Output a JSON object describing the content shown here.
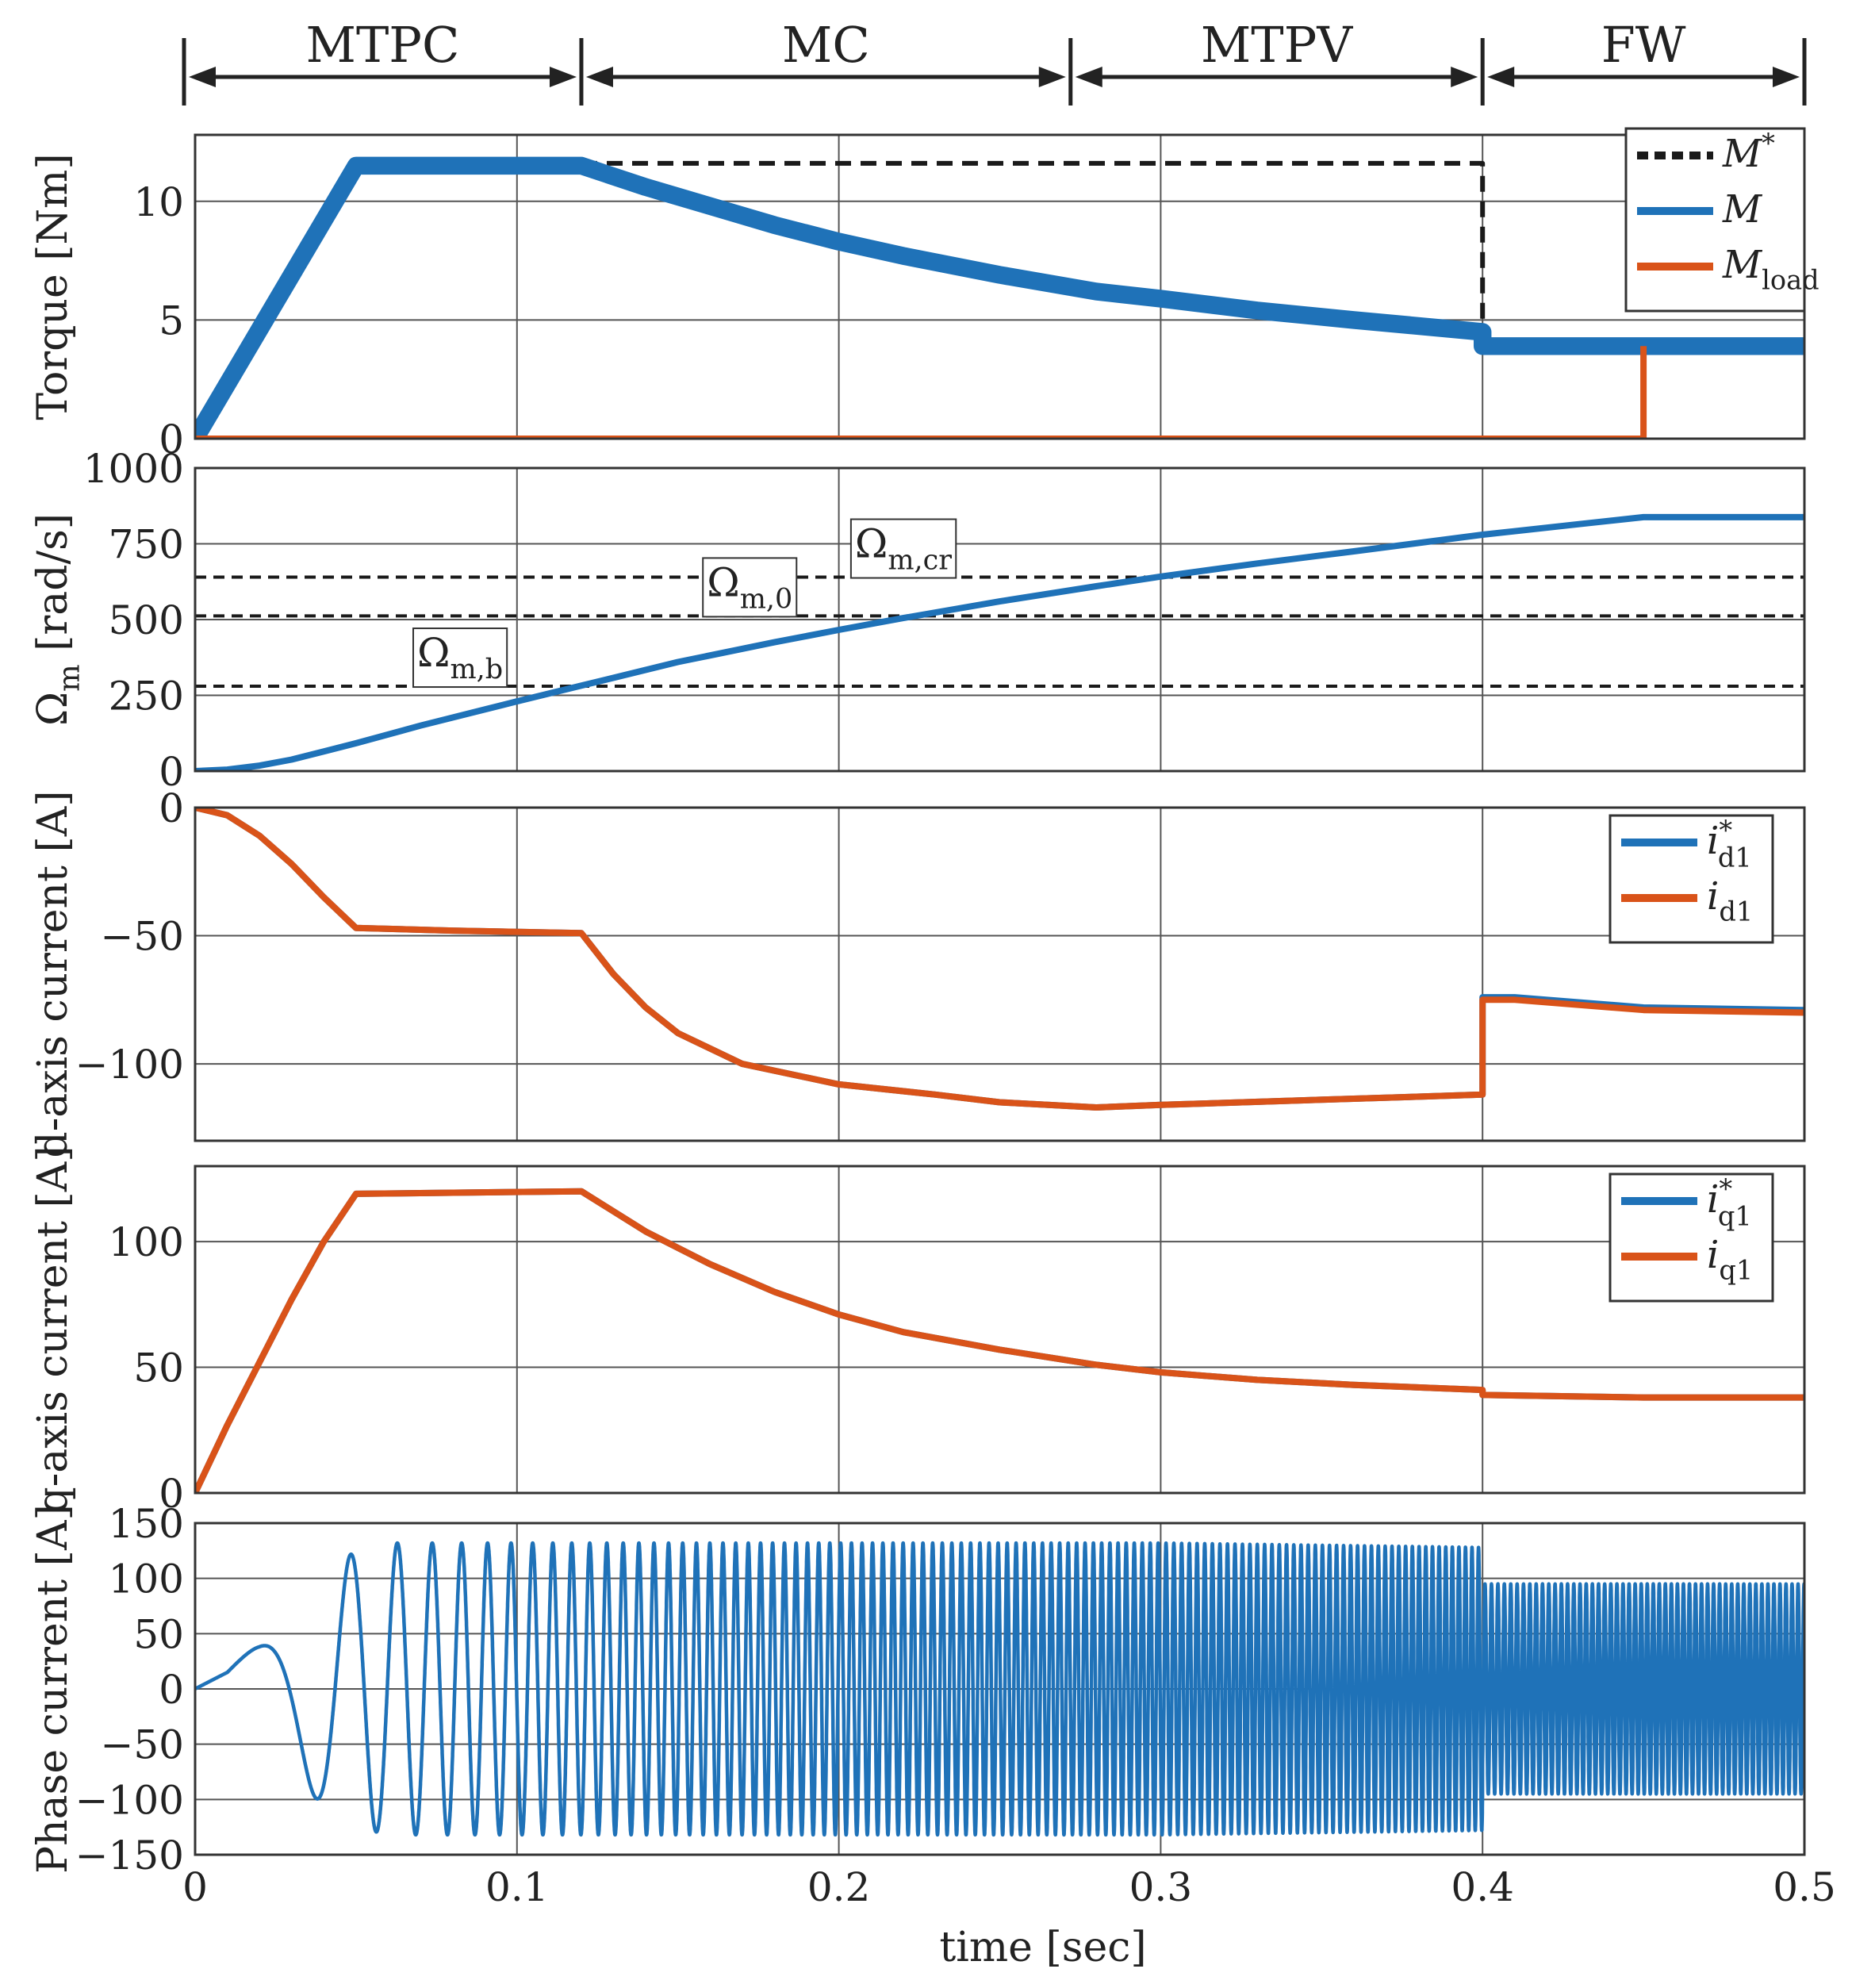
{
  "colors": {
    "blue": "#1f72b8",
    "orange": "#d95319",
    "reference": "#1a1a1a",
    "grid": "#555555",
    "frame": "#333333"
  },
  "regions": {
    "labels": [
      "MTPC",
      "MC",
      "MTPV",
      "FW"
    ],
    "boundaries_sec": [
      0,
      0.12,
      0.272,
      0.4,
      0.5
    ]
  },
  "xaxis": {
    "label": "time [sec]",
    "range": [
      0,
      0.5
    ],
    "ticks": [
      0,
      0.1,
      0.2,
      0.3,
      0.4,
      0.5
    ],
    "tick_labels": [
      "0",
      "0.1",
      "0.2",
      "0.3",
      "0.4",
      "0.5"
    ]
  },
  "chart_data": [
    {
      "type": "line",
      "ylabel": "Torque [Nm]",
      "ylim": [
        0,
        12.8
      ],
      "yticks": [
        0,
        5,
        10
      ],
      "ytick_labels": [
        "0",
        "5",
        "10"
      ],
      "grid": true,
      "legend": {
        "position": "top-right",
        "entries": [
          {
            "symbol": "M",
            "sup": "*",
            "sub": "",
            "series": "M_ref"
          },
          {
            "symbol": "M",
            "sup": "",
            "sub": "",
            "series": "M"
          },
          {
            "symbol": "M",
            "sup": "",
            "sub": "load",
            "series": "M_load"
          }
        ]
      },
      "series": [
        {
          "id": "M_ref",
          "color": "#1a1a1a",
          "style": "dashed",
          "x": [
            0.12,
            0.4,
            0.4
          ],
          "y": [
            11.6,
            11.6,
            4.2
          ]
        },
        {
          "id": "M",
          "color": "#1f72b8",
          "style": "solid",
          "band": 0.75,
          "x": [
            0,
            0.05,
            0.12,
            0.14,
            0.16,
            0.18,
            0.2,
            0.22,
            0.25,
            0.28,
            0.3,
            0.33,
            0.36,
            0.4,
            0.4,
            0.5
          ],
          "y": [
            0,
            11.5,
            11.5,
            10.6,
            9.8,
            9.0,
            8.3,
            7.7,
            6.9,
            6.2,
            5.9,
            5.4,
            5.0,
            4.5,
            3.9,
            3.9
          ]
        },
        {
          "id": "M_load",
          "color": "#d95319",
          "style": "solid",
          "x": [
            0,
            0.45,
            0.45
          ],
          "y": [
            0,
            0,
            3.9
          ]
        }
      ]
    },
    {
      "type": "line",
      "ylabel": "Ω",
      "ylabel_sub": "m",
      "ylabel_suffix": " [rad/s]",
      "ylim": [
        0,
        1000
      ],
      "yticks": [
        0,
        250,
        500,
        750,
        1000
      ],
      "ytick_labels": [
        "0",
        "250",
        "500",
        "750",
        "1000"
      ],
      "grid": true,
      "reference_lines": [
        {
          "value": 280,
          "symbol": "Ω",
          "sub": "m,b",
          "label_x": 0.069
        },
        {
          "value": 512,
          "symbol": "Ω",
          "sub": "m,0",
          "label_x": 0.159
        },
        {
          "value": 640,
          "symbol": "Ω",
          "sub": "m,cr",
          "label_x": 0.205
        }
      ],
      "series": [
        {
          "id": "Omega_m",
          "color": "#1f72b8",
          "style": "solid",
          "x": [
            0,
            0.01,
            0.02,
            0.03,
            0.04,
            0.05,
            0.07,
            0.1,
            0.12,
            0.15,
            0.18,
            0.2,
            0.22,
            0.25,
            0.28,
            0.3,
            0.33,
            0.36,
            0.4,
            0.43,
            0.45,
            0.5
          ],
          "y": [
            0,
            5,
            18,
            38,
            65,
            92,
            150,
            230,
            282,
            360,
            425,
            466,
            505,
            560,
            610,
            642,
            685,
            725,
            780,
            815,
            838,
            838
          ]
        }
      ]
    },
    {
      "type": "line",
      "ylabel": "d-axis current [A]",
      "ylim": [
        -130,
        0
      ],
      "yticks": [
        -100,
        -50,
        0
      ],
      "ytick_labels": [
        "−100",
        "−50",
        "0"
      ],
      "grid": true,
      "legend": {
        "position": "top-right",
        "entries": [
          {
            "symbol": "i",
            "sup": "*",
            "sub": "d1",
            "series": "id_ref"
          },
          {
            "symbol": "i",
            "sup": "",
            "sub": "d1",
            "series": "id"
          }
        ]
      },
      "series": [
        {
          "id": "id_ref",
          "color": "#1f72b8",
          "style": "solid",
          "x": [
            0,
            0.01,
            0.02,
            0.03,
            0.04,
            0.05,
            0.08,
            0.12,
            0.13,
            0.14,
            0.15,
            0.17,
            0.2,
            0.23,
            0.25,
            0.28,
            0.3,
            0.35,
            0.4,
            0.4,
            0.41,
            0.45,
            0.5
          ],
          "y": [
            0,
            -3,
            -11,
            -22,
            -35,
            -47,
            -48,
            -49,
            -65,
            -78,
            -88,
            -100,
            -108,
            -112,
            -115,
            -117,
            -116,
            -114,
            -112,
            -74,
            -74,
            -78,
            -79
          ]
        },
        {
          "id": "id",
          "color": "#d95319",
          "style": "solid",
          "x": [
            0,
            0.01,
            0.02,
            0.03,
            0.04,
            0.05,
            0.08,
            0.12,
            0.13,
            0.14,
            0.15,
            0.17,
            0.2,
            0.23,
            0.25,
            0.28,
            0.3,
            0.35,
            0.4,
            0.4,
            0.41,
            0.45,
            0.5
          ],
          "y": [
            0,
            -3,
            -11,
            -22,
            -35,
            -47,
            -48,
            -49,
            -65,
            -78,
            -88,
            -100,
            -108,
            -112,
            -115,
            -117,
            -116,
            -114,
            -112,
            -75,
            -75,
            -79,
            -80
          ]
        }
      ]
    },
    {
      "type": "line",
      "ylabel": "q-axis current [A]",
      "ylim": [
        0,
        130
      ],
      "yticks": [
        0,
        50,
        100
      ],
      "ytick_labels": [
        "0",
        "50",
        "100"
      ],
      "grid": true,
      "legend": {
        "position": "top-right",
        "entries": [
          {
            "symbol": "i",
            "sup": "*",
            "sub": "q1",
            "series": "iq_ref"
          },
          {
            "symbol": "i",
            "sup": "",
            "sub": "q1",
            "series": "iq"
          }
        ]
      },
      "series": [
        {
          "id": "iq_ref",
          "color": "#1f72b8",
          "style": "solid",
          "x": [
            0,
            0.01,
            0.02,
            0.03,
            0.04,
            0.05,
            0.12,
            0.14,
            0.16,
            0.18,
            0.2,
            0.22,
            0.25,
            0.28,
            0.3,
            0.33,
            0.36,
            0.4,
            0.4,
            0.45,
            0.5
          ],
          "y": [
            0,
            27,
            52,
            77,
            100,
            119,
            120,
            104,
            91,
            80,
            71,
            64,
            57,
            51,
            48,
            45,
            43,
            41,
            39,
            38,
            38
          ]
        },
        {
          "id": "iq",
          "color": "#d95319",
          "style": "solid",
          "x": [
            0,
            0.01,
            0.02,
            0.03,
            0.04,
            0.05,
            0.12,
            0.14,
            0.16,
            0.18,
            0.2,
            0.22,
            0.25,
            0.28,
            0.3,
            0.33,
            0.36,
            0.4,
            0.4,
            0.45,
            0.5
          ],
          "y": [
            0,
            27,
            52,
            77,
            100,
            119,
            120,
            104,
            91,
            80,
            71,
            64,
            57,
            51,
            48,
            45,
            43,
            41,
            39,
            38,
            38
          ]
        }
      ]
    },
    {
      "type": "line",
      "ylabel": "Phase current [A]",
      "ylim": [
        -150,
        150
      ],
      "yticks": [
        -150,
        -100,
        -50,
        0,
        50,
        100,
        150
      ],
      "ytick_labels": [
        "−150",
        "−100",
        "−50",
        "0",
        "50",
        "100",
        "150"
      ],
      "grid": true,
      "series": [
        {
          "id": "i_phase",
          "color": "#1f72b8",
          "style": "solid",
          "pole_pairs": 4,
          "amplitude_t": [
            0,
            0.01,
            0.02,
            0.03,
            0.04,
            0.05,
            0.06,
            0.12,
            0.3,
            0.4,
            0.4,
            0.5
          ],
          "amplitude": [
            0,
            15,
            45,
            80,
            105,
            125,
            132,
            132,
            132,
            128,
            95,
            95
          ]
        }
      ]
    }
  ]
}
